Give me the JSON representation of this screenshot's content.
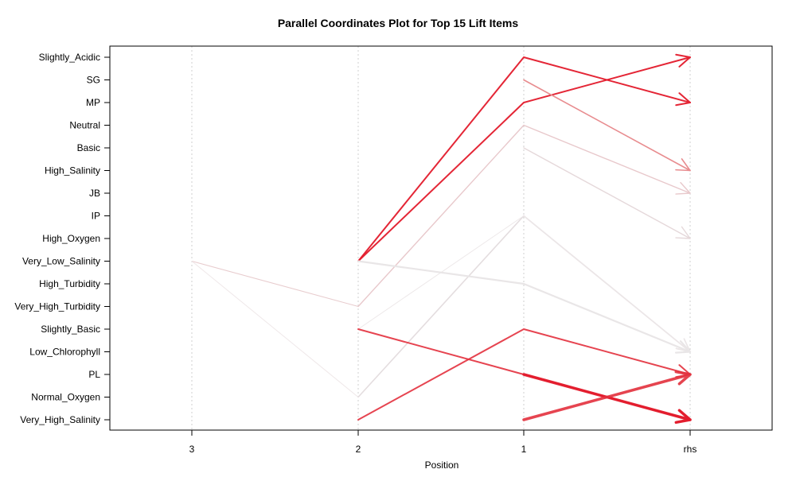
{
  "chart_data": {
    "type": "parallel-coordinates",
    "title": "Parallel Coordinates Plot for Top 15 Lift Items",
    "xlabel": "Position",
    "ylabel": "",
    "x_categories": [
      "3",
      "2",
      "1",
      "rhs"
    ],
    "y_items": [
      "Slightly_Acidic",
      "SG",
      "MP",
      "Neutral",
      "Basic",
      "High_Salinity",
      "JB",
      "IP",
      "High_Oxygen",
      "Very_Low_Salinity",
      "High_Turbidity",
      "Very_High_Turbidity",
      "Slightly_Basic",
      "Low_Chlorophyll",
      "PL",
      "Normal_Oxygen",
      "Very_High_Salinity"
    ],
    "vertical_grid": true,
    "rules": [
      {
        "path": [
          null,
          "Very_Low_Salinity",
          "Slightly_Acidic",
          "MP"
        ],
        "color": "#E31A2B",
        "opacity": 0.95,
        "width": 2
      },
      {
        "path": [
          null,
          "Very_Low_Salinity",
          "MP",
          "Slightly_Acidic"
        ],
        "color": "#E31A2B",
        "opacity": 0.95,
        "width": 2
      },
      {
        "path": [
          null,
          null,
          "SG",
          "High_Salinity"
        ],
        "color": "#E88C8F",
        "opacity": 1,
        "width": 1.6
      },
      {
        "path": [
          null,
          "Very_High_Turbidity",
          "Neutral",
          "JB"
        ],
        "color": "#E8C8CB",
        "opacity": 1,
        "width": 1.4
      },
      {
        "path": [
          null,
          null,
          "Basic",
          "High_Oxygen"
        ],
        "color": "#E5D8DA",
        "opacity": 1,
        "width": 1.4
      },
      {
        "path": [
          null,
          "Normal_Oxygen",
          "IP",
          "Low_Chlorophyll"
        ],
        "color": "#E4DDDF",
        "opacity": 1,
        "width": 1.6
      },
      {
        "path": [
          null,
          "Slightly_Basic",
          "IP",
          "Low_Chlorophyll"
        ],
        "color": "#EDE8E9",
        "opacity": 1,
        "width": 1
      },
      {
        "path": [
          null,
          "Very_Low_Salinity",
          "High_Turbidity",
          "Low_Chlorophyll"
        ],
        "color": "#E9E6E7",
        "opacity": 1,
        "width": 2.2
      },
      {
        "path": [
          "Very_Low_Salinity",
          "Very_High_Turbidity",
          null,
          null
        ],
        "color": "#E8CCCE",
        "opacity": 1,
        "width": 1
      },
      {
        "path": [
          "Very_Low_Salinity",
          "Normal_Oxygen",
          null,
          null
        ],
        "color": "#EFE8E9",
        "opacity": 1,
        "width": 1
      },
      {
        "path": [
          null,
          "Very_High_Salinity",
          "Slightly_Basic",
          "PL"
        ],
        "color": "#E3303D",
        "opacity": 0.9,
        "width": 2
      },
      {
        "path": [
          null,
          "Slightly_Basic",
          "PL",
          "Very_High_Salinity"
        ],
        "color": "#E3303D",
        "opacity": 0.9,
        "width": 2
      },
      {
        "path": [
          null,
          null,
          "PL",
          "Very_High_Salinity"
        ],
        "color": "#E31A2B",
        "opacity": 0.95,
        "width": 3.5
      },
      {
        "path": [
          null,
          null,
          "Very_High_Salinity",
          "PL"
        ],
        "color": "#E3303D",
        "opacity": 0.9,
        "width": 3.5
      }
    ]
  }
}
